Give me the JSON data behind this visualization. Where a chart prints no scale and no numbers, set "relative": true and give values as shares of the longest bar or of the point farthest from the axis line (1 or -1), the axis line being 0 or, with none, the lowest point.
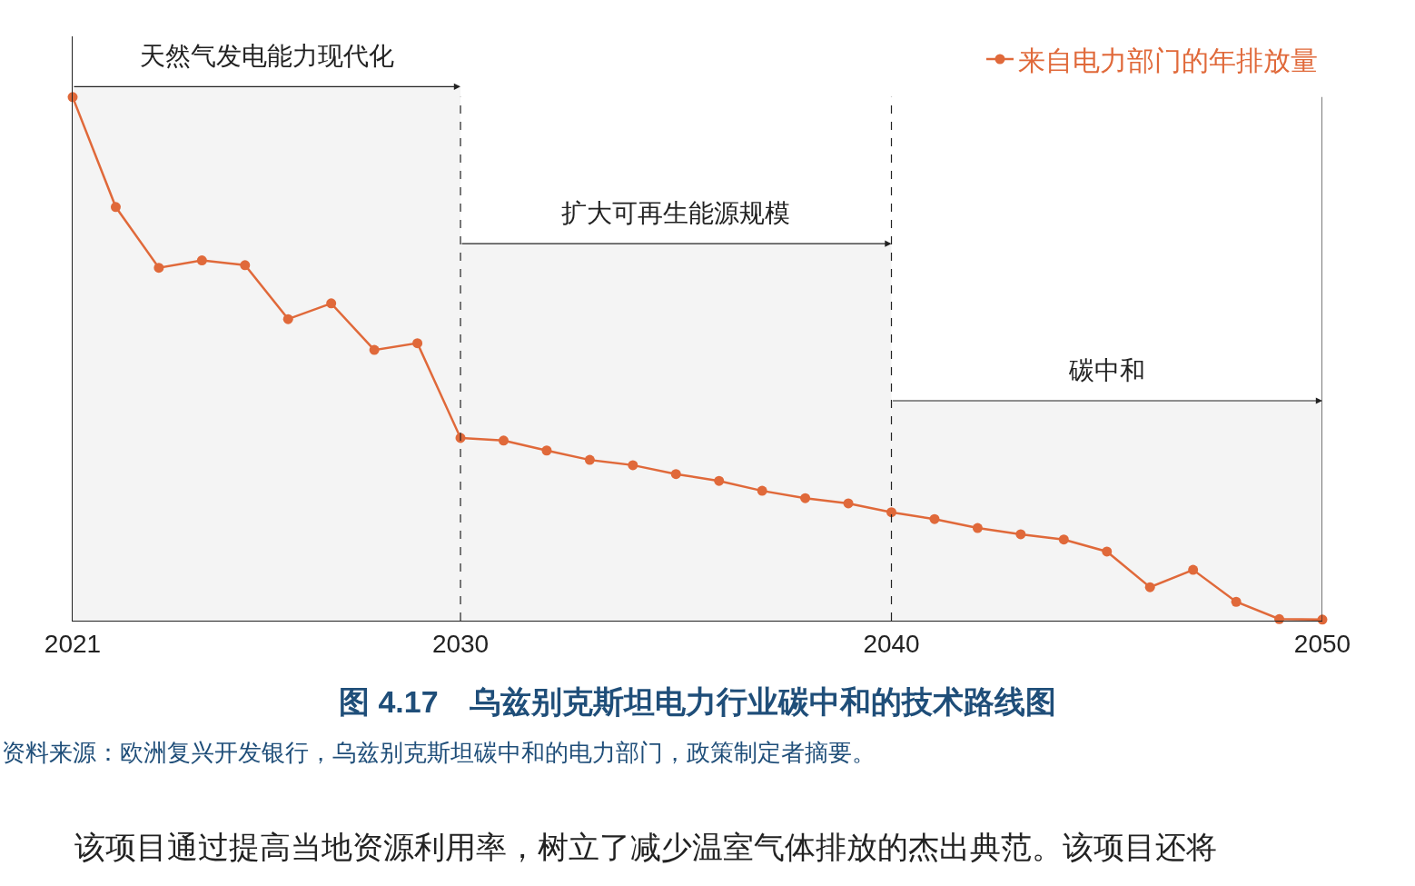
{
  "chart_data": {
    "type": "line",
    "title": "图 4.17　乌兹别克斯坦电力行业碳中和的技术路线图",
    "bands": [
      {
        "axis": "x",
        "from": 2021,
        "to": 2030,
        "label": "天然气发电能力现代化",
        "color": "#f4f4f4"
      },
      {
        "axis": "x",
        "from": 2030,
        "to": 2040,
        "label": "扩大可再生能源规模",
        "color": "#f4f4f4"
      },
      {
        "axis": "x",
        "from": 2040,
        "to": 2050,
        "label": "碳中和",
        "color": "#f4f4f4"
      }
    ],
    "annotations": [
      "资料来源：欧洲复兴开发银行，乌兹别克斯坦碳中和的电力部门，政策制定者摘要。",
      "该项目通过提高当地资源利用率，树立了减少温室气体排放的杰出典范。该项目还将"
    ],
    "x": [
      2021,
      2022,
      2023,
      2024,
      2025,
      2026,
      2027,
      2028,
      2029,
      2030,
      2031,
      2032,
      2033,
      2034,
      2035,
      2036,
      2037,
      2038,
      2039,
      2040,
      2041,
      2042,
      2043,
      2044,
      2045,
      2046,
      2047,
      2048,
      2049,
      2050
    ],
    "relative": true,
    "series": [
      {
        "name": "来自电力部门的年排放量",
        "color": "#e0693a",
        "values": [
          1,
          0.79,
          0.674,
          0.688,
          0.679,
          0.576,
          0.606,
          0.517,
          0.53,
          0.349,
          0.344,
          0.325,
          0.307,
          0.297,
          0.28,
          0.267,
          0.248,
          0.234,
          0.224,
          0.207,
          0.194,
          0.177,
          0.165,
          0.155,
          0.132,
          0.064,
          0.097,
          0.036,
          0.003,
          0.002
        ]
      }
    ],
    "xlim": [
      2021,
      2050
    ],
    "xticks": [
      2021,
      2030,
      2040,
      2050
    ],
    "ref_lines": [
      {
        "axis": "x",
        "value": 2030,
        "line_style": "dashed"
      },
      {
        "axis": "x",
        "value": 2040,
        "line_style": "dashed"
      },
      {
        "axis": "x",
        "value": 2050,
        "line_style": "solid"
      }
    ],
    "grid": false,
    "legend": "top right",
    "marker": "circle",
    "line_style": "solid"
  }
}
